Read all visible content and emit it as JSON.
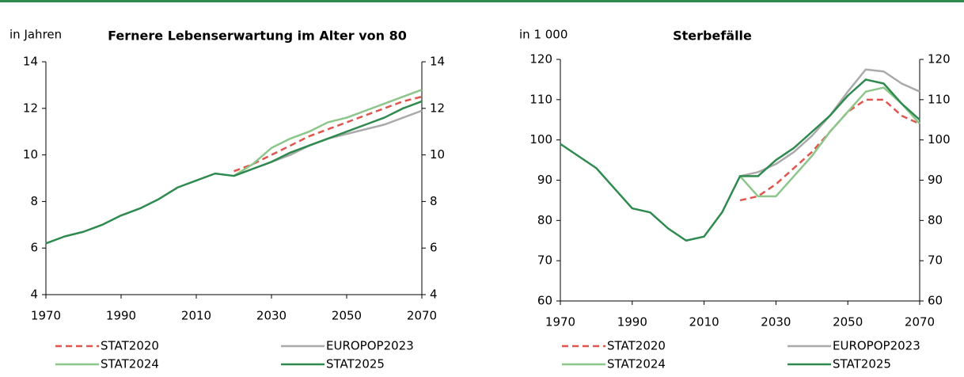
{
  "chart_data": [
    {
      "type": "line",
      "title": "Fernere Lebenserwartung im Alter von 80",
      "ylabel": "in Jahren",
      "x": [
        1970,
        1975,
        1980,
        1985,
        1990,
        1995,
        2000,
        2005,
        2010,
        2015,
        2020,
        2025,
        2030,
        2035,
        2040,
        2045,
        2050,
        2055,
        2060,
        2065,
        2070
      ],
      "xlim": [
        1970,
        2070
      ],
      "xticks": [
        1970,
        1990,
        2010,
        2030,
        2050,
        2070
      ],
      "ylim": [
        4,
        14
      ],
      "yticks": [
        4,
        6,
        8,
        10,
        12,
        14
      ],
      "series": [
        {
          "name": "STAT2020",
          "color": "#e0554d",
          "dashed": true,
          "values": [
            null,
            null,
            null,
            null,
            null,
            null,
            null,
            null,
            null,
            null,
            9.3,
            9.6,
            10.0,
            10.4,
            10.8,
            11.1,
            11.4,
            11.7,
            12.0,
            12.3,
            12.5
          ]
        },
        {
          "name": "EUROPOP2023",
          "color": "#aaaaaa",
          "values": [
            null,
            null,
            null,
            null,
            null,
            null,
            null,
            null,
            null,
            null,
            9.1,
            9.4,
            9.7,
            10.0,
            10.4,
            10.7,
            10.9,
            11.1,
            11.3,
            11.6,
            11.9
          ]
        },
        {
          "name": "STAT2024",
          "color": "#8cc68a",
          "values": [
            null,
            null,
            null,
            null,
            null,
            null,
            null,
            null,
            null,
            null,
            9.1,
            9.6,
            10.3,
            10.7,
            11.0,
            11.4,
            11.6,
            11.9,
            12.2,
            12.5,
            12.8
          ]
        },
        {
          "name": "STAT2025",
          "color": "#2f8a4f",
          "values": [
            6.2,
            6.5,
            6.7,
            7.0,
            7.4,
            7.7,
            8.1,
            8.6,
            8.9,
            9.2,
            9.1,
            9.4,
            9.7,
            10.1,
            10.4,
            10.7,
            11.0,
            11.3,
            11.6,
            12.0,
            12.3
          ]
        }
      ]
    },
    {
      "type": "line",
      "title": "Sterbefälle",
      "ylabel": "in 1 000",
      "x": [
        1970,
        1975,
        1980,
        1985,
        1990,
        1995,
        2000,
        2005,
        2010,
        2015,
        2020,
        2025,
        2030,
        2035,
        2040,
        2045,
        2050,
        2055,
        2060,
        2065,
        2070
      ],
      "xlim": [
        1970,
        2070
      ],
      "xticks": [
        1970,
        1990,
        2010,
        2030,
        2050,
        2070
      ],
      "ylim": [
        60,
        120
      ],
      "yticks": [
        60,
        70,
        80,
        90,
        100,
        110,
        120
      ],
      "series": [
        {
          "name": "STAT2020",
          "color": "#e0554d",
          "dashed": true,
          "values": [
            null,
            null,
            null,
            null,
            null,
            null,
            null,
            null,
            null,
            null,
            85,
            86,
            89,
            93,
            97,
            102,
            107,
            110,
            110,
            106,
            104
          ]
        },
        {
          "name": "EUROPOP2023",
          "color": "#aaaaaa",
          "values": [
            null,
            null,
            null,
            null,
            null,
            null,
            null,
            null,
            null,
            null,
            91,
            92,
            94,
            97,
            101,
            106,
            112,
            117.5,
            117,
            114,
            112
          ]
        },
        {
          "name": "STAT2024",
          "color": "#8cc68a",
          "values": [
            null,
            null,
            null,
            null,
            null,
            null,
            null,
            null,
            null,
            null,
            91,
            86,
            86,
            91,
            96,
            102,
            107,
            112,
            113,
            109,
            104
          ]
        },
        {
          "name": "STAT2025",
          "color": "#2f8a4f",
          "values": [
            99,
            96,
            93,
            88,
            83,
            82,
            78,
            75,
            76,
            82,
            91,
            91,
            95,
            98,
            102,
            106,
            111,
            115,
            114,
            109,
            105
          ]
        }
      ]
    }
  ]
}
